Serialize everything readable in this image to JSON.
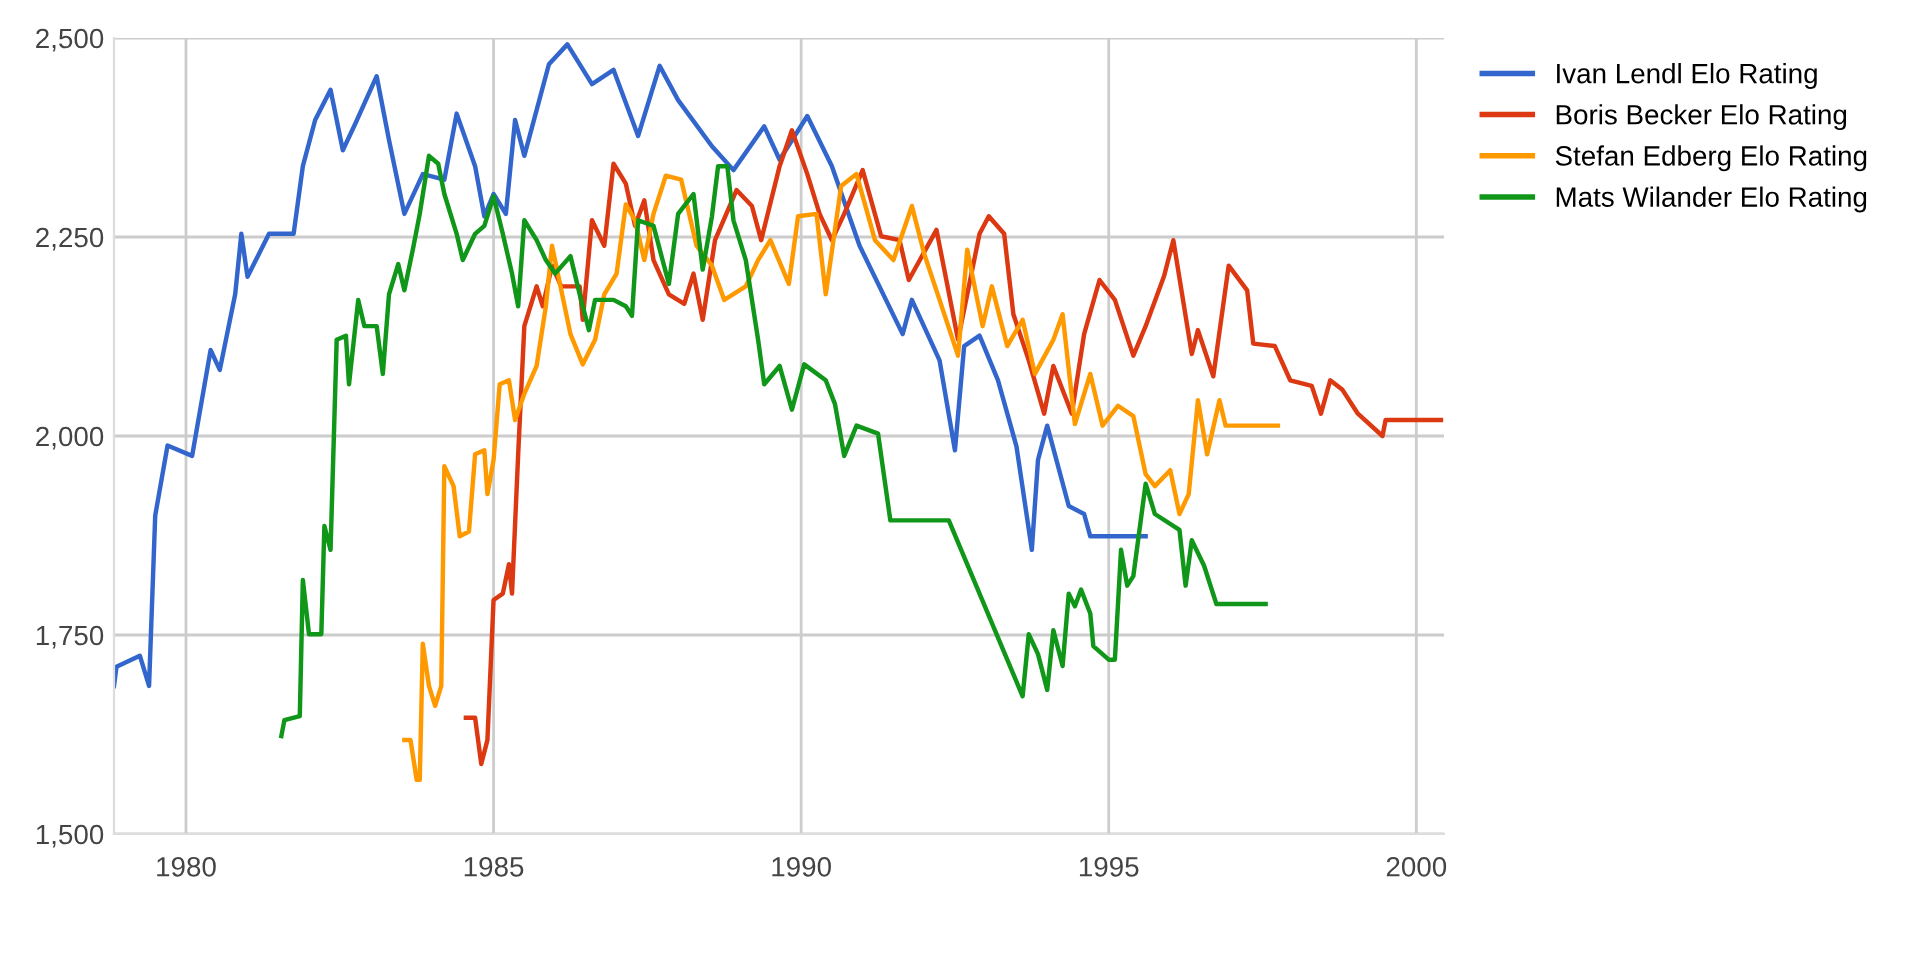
{
  "chart_data": {
    "type": "line",
    "xlim": [
      1978.83,
      2000.45
    ],
    "xticks": [
      1980,
      1985,
      1990,
      1995,
      2000
    ],
    "ylim": [
      1500,
      2500
    ],
    "yticks": [
      {
        "value": 1500,
        "label": "1,500"
      },
      {
        "value": 1750,
        "label": "1,750"
      },
      {
        "value": 2000,
        "label": "2,000"
      },
      {
        "value": 2250,
        "label": "2,250"
      },
      {
        "value": 2500,
        "label": "2,500"
      }
    ],
    "grid": true,
    "legend": "top right",
    "marker": "none",
    "line_style": "solid",
    "series": [
      {
        "name": "Ivan Lendl Elo Rating",
        "color": "#3366cc",
        "x": [
          1978.83,
          1978.87,
          1979.25,
          1979.4,
          1979.5,
          1979.7,
          1980.1,
          1980.4,
          1980.55,
          1980.8,
          1980.9,
          1981.0,
          1981.35,
          1981.75,
          1981.9,
          1982.1,
          1982.35,
          1982.55,
          1982.75,
          1983.1,
          1983.3,
          1983.55,
          1983.85,
          1984.2,
          1984.4,
          1984.7,
          1984.85,
          1985.0,
          1985.2,
          1985.35,
          1985.5,
          1985.9,
          1986.2,
          1986.6,
          1986.95,
          1987.35,
          1987.7,
          1988.0,
          1988.55,
          1988.9,
          1989.4,
          1989.65,
          1990.1,
          1990.5,
          1990.95,
          1991.65,
          1991.8,
          1992.25,
          1992.5,
          1992.65,
          1992.9,
          1993.2,
          1993.5,
          1993.75,
          1993.85,
          1994.0,
          1994.35,
          1994.6,
          1994.7,
          1995.6
        ],
        "values": [
          1686,
          1710,
          1724,
          1686,
          1900,
          1988,
          1975,
          2108,
          2083,
          2178,
          2254,
          2200,
          2254,
          2254,
          2339,
          2397,
          2435,
          2359,
          2392,
          2452,
          2372,
          2279,
          2329,
          2322,
          2405,
          2339,
          2276,
          2304,
          2279,
          2397,
          2352,
          2467,
          2492,
          2442,
          2460,
          2377,
          2465,
          2422,
          2364,
          2334,
          2389,
          2347,
          2402,
          2339,
          2239,
          2128,
          2171,
          2095,
          1982,
          2113,
          2126,
          2070,
          1987,
          1857,
          1970,
          2013,
          1912,
          1902,
          1874,
          1874
        ]
      },
      {
        "name": "Boris Becker Elo Rating",
        "color": "#dc3912",
        "x": [
          1984.55,
          1984.7,
          1984.8,
          1984.9,
          1985.0,
          1985.15,
          1985.25,
          1985.3,
          1985.4,
          1985.5,
          1985.7,
          1985.8,
          1985.95,
          1986.1,
          1986.4,
          1986.45,
          1986.6,
          1986.8,
          1986.95,
          1987.15,
          1987.3,
          1987.45,
          1987.6,
          1987.85,
          1988.1,
          1988.25,
          1988.4,
          1988.6,
          1988.95,
          1989.2,
          1989.35,
          1989.65,
          1989.85,
          1990.1,
          1990.3,
          1990.5,
          1990.7,
          1991.0,
          1991.3,
          1991.6,
          1991.75,
          1992.2,
          1992.55,
          1992.9,
          1993.05,
          1993.3,
          1993.45,
          1993.7,
          1993.95,
          1994.1,
          1994.4,
          1994.6,
          1994.85,
          1995.1,
          1995.4,
          1995.6,
          1995.9,
          1996.05,
          1996.35,
          1996.45,
          1996.7,
          1996.95,
          1997.25,
          1997.35,
          1997.7,
          1997.95,
          1998.3,
          1998.45,
          1998.6,
          1998.8,
          1999.05,
          1999.45,
          1999.5,
          2000.4
        ],
        "values": [
          1646,
          1646,
          1588,
          1618,
          1794,
          1802,
          1839,
          1802,
          1977,
          2138,
          2188,
          2163,
          2214,
          2188,
          2188,
          2146,
          2271,
          2239,
          2342,
          2317,
          2264,
          2296,
          2221,
          2178,
          2166,
          2204,
          2146,
          2246,
          2309,
          2289,
          2246,
          2339,
          2384,
          2329,
          2279,
          2246,
          2279,
          2334,
          2251,
          2246,
          2196,
          2259,
          2121,
          2254,
          2276,
          2254,
          2153,
          2095,
          2028,
          2088,
          2028,
          2128,
          2196,
          2171,
          2101,
          2138,
          2201,
          2246,
          2103,
          2133,
          2075,
          2214,
          2183,
          2116,
          2113,
          2070,
          2063,
          2028,
          2070,
          2058,
          2028,
          2000,
          2020,
          2020
        ]
      },
      {
        "name": "Stefan Edberg Elo Rating",
        "color": "#ff9900",
        "x": [
          1983.55,
          1983.65,
          1983.75,
          1983.8,
          1983.85,
          1983.95,
          1984.05,
          1984.15,
          1984.2,
          1984.35,
          1984.45,
          1984.6,
          1984.7,
          1984.85,
          1984.9,
          1985.0,
          1985.1,
          1985.25,
          1985.35,
          1985.5,
          1985.7,
          1985.85,
          1985.95,
          1986.25,
          1986.45,
          1986.65,
          1986.8,
          1987.0,
          1987.15,
          1987.3,
          1987.45,
          1987.6,
          1987.8,
          1988.05,
          1988.3,
          1988.55,
          1988.75,
          1989.1,
          1989.3,
          1989.5,
          1989.8,
          1989.95,
          1990.25,
          1990.4,
          1990.65,
          1990.9,
          1991.2,
          1991.5,
          1991.8,
          1992.0,
          1992.25,
          1992.55,
          1992.7,
          1992.95,
          1993.1,
          1993.35,
          1993.6,
          1993.8,
          1994.1,
          1994.25,
          1994.45,
          1994.7,
          1994.9,
          1995.15,
          1995.4,
          1995.6,
          1995.75,
          1996.0,
          1996.15,
          1996.3,
          1996.45,
          1996.6,
          1996.8,
          1996.9,
          1997.75
        ],
        "values": [
          1618,
          1618,
          1568,
          1568,
          1739,
          1686,
          1661,
          1686,
          1962,
          1937,
          1874,
          1880,
          1977,
          1982,
          1927,
          1970,
          2065,
          2070,
          2020,
          2053,
          2088,
          2163,
          2239,
          2128,
          2090,
          2121,
          2178,
          2204,
          2291,
          2271,
          2221,
          2279,
          2327,
          2322,
          2239,
          2214,
          2171,
          2188,
          2221,
          2246,
          2191,
          2276,
          2279,
          2178,
          2314,
          2329,
          2246,
          2221,
          2289,
          2229,
          2171,
          2101,
          2234,
          2138,
          2188,
          2113,
          2146,
          2078,
          2121,
          2153,
          2015,
          2078,
          2013,
          2038,
          2025,
          1952,
          1937,
          1957,
          1902,
          1927,
          2045,
          1977,
          2045,
          2013,
          2013
        ]
      },
      {
        "name": "Mats Wilander Elo Rating",
        "color": "#109618",
        "x": [
          1981.55,
          1981.6,
          1981.85,
          1981.9,
          1982.0,
          1982.2,
          1982.25,
          1982.35,
          1982.45,
          1982.6,
          1982.65,
          1982.8,
          1982.9,
          1983.1,
          1983.2,
          1983.3,
          1983.45,
          1983.55,
          1983.7,
          1983.8,
          1983.95,
          1984.1,
          1984.2,
          1984.4,
          1984.5,
          1984.7,
          1984.85,
          1985.0,
          1985.15,
          1985.3,
          1985.4,
          1985.5,
          1985.7,
          1985.85,
          1986.0,
          1986.25,
          1986.4,
          1986.55,
          1986.65,
          1986.95,
          1987.15,
          1987.25,
          1987.35,
          1987.6,
          1987.85,
          1988.0,
          1988.25,
          1988.4,
          1988.55,
          1988.65,
          1988.8,
          1988.9,
          1989.1,
          1989.3,
          1989.4,
          1989.65,
          1989.85,
          1990.05,
          1990.4,
          1990.55,
          1990.7,
          1990.9,
          1991.25,
          1991.45,
          1992.4,
          1993.6,
          1993.7,
          1993.85,
          1994.0,
          1994.1,
          1994.25,
          1994.35,
          1994.45,
          1994.55,
          1994.7,
          1994.75,
          1995.0,
          1995.1,
          1995.2,
          1995.3,
          1995.4,
          1995.6,
          1995.75,
          1996.15,
          1996.25,
          1996.35,
          1996.55,
          1996.75,
          1997.55
        ],
        "values": [
          1623,
          1643,
          1648,
          1819,
          1751,
          1751,
          1887,
          1857,
          2121,
          2126,
          2065,
          2171,
          2138,
          2138,
          2078,
          2178,
          2216,
          2183,
          2239,
          2279,
          2352,
          2342,
          2304,
          2254,
          2221,
          2254,
          2264,
          2301,
          2254,
          2204,
          2163,
          2271,
          2246,
          2221,
          2204,
          2226,
          2178,
          2133,
          2171,
          2171,
          2163,
          2151,
          2271,
          2264,
          2191,
          2279,
          2304,
          2209,
          2276,
          2339,
          2339,
          2271,
          2221,
          2121,
          2065,
          2088,
          2033,
          2090,
          2070,
          2040,
          1975,
          2013,
          2003,
          1894,
          1894,
          1673,
          1751,
          1726,
          1681,
          1756,
          1711,
          1802,
          1786,
          1807,
          1777,
          1736,
          1719,
          1719,
          1857,
          1812,
          1824,
          1940,
          1902,
          1882,
          1812,
          1869,
          1837,
          1789,
          1789
        ]
      }
    ]
  }
}
